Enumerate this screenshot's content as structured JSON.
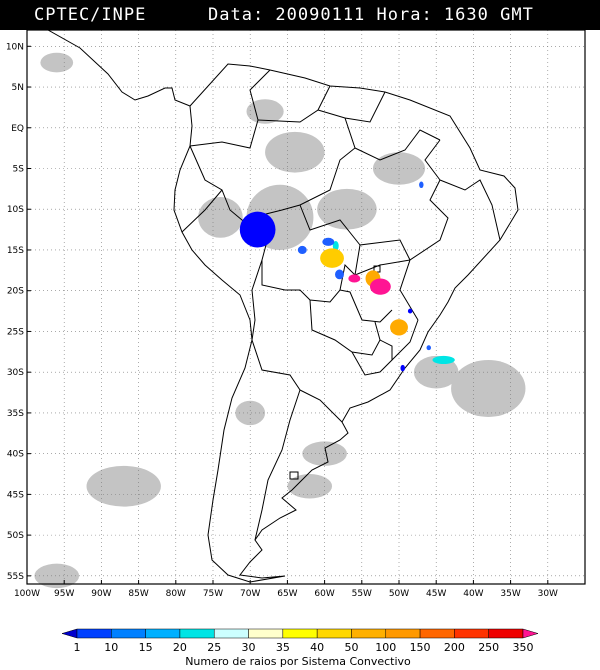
{
  "header": {
    "org": "CPTEC/INPE",
    "stamp": "Data: 20090111 Hora: 1630 GMT"
  },
  "map": {
    "projection": "lat-lon",
    "lon_range": [
      -100,
      -25
    ],
    "lat_range": [
      -56,
      12
    ],
    "gridlines": true,
    "lat_labels": [
      "10N",
      "5N",
      "EQ",
      "5S",
      "10S",
      "15S",
      "20S",
      "25S",
      "30S",
      "35S",
      "40S",
      "45S",
      "50S",
      "55S"
    ],
    "lat_values": [
      10,
      5,
      0,
      -5,
      -10,
      -15,
      -20,
      -25,
      -30,
      -35,
      -40,
      -45,
      -50,
      -55
    ],
    "lon_labels": [
      "100W",
      "95W",
      "90W",
      "85W",
      "80W",
      "75W",
      "70W",
      "65W",
      "60W",
      "55W",
      "50W",
      "45W",
      "40W",
      "35W",
      "30W"
    ],
    "lon_values": [
      -100,
      -95,
      -90,
      -85,
      -80,
      -75,
      -70,
      -65,
      -60,
      -55,
      -50,
      -45,
      -40,
      -35,
      -30
    ],
    "cloud_color": "#c4c4c4",
    "clouds": [
      {
        "lon": -96,
        "lat": 8,
        "rx": 2.2,
        "ry": 1.2
      },
      {
        "lon": -68,
        "lat": 2,
        "rx": 2.5,
        "ry": 1.5
      },
      {
        "lon": -64,
        "lat": -3,
        "rx": 4,
        "ry": 2.5
      },
      {
        "lon": -66,
        "lat": -11,
        "rx": 4.5,
        "ry": 4
      },
      {
        "lon": -74,
        "lat": -11,
        "rx": 3,
        "ry": 2.5
      },
      {
        "lon": -57,
        "lat": -10,
        "rx": 4,
        "ry": 2.5
      },
      {
        "lon": -50,
        "lat": -5,
        "rx": 3.5,
        "ry": 2
      },
      {
        "lon": -38,
        "lat": -32,
        "rx": 5,
        "ry": 3.5
      },
      {
        "lon": -45,
        "lat": -30,
        "rx": 3,
        "ry": 2
      },
      {
        "lon": -70,
        "lat": -35,
        "rx": 2,
        "ry": 1.5
      },
      {
        "lon": -60,
        "lat": -40,
        "rx": 3,
        "ry": 1.5
      },
      {
        "lon": -87,
        "lat": -44,
        "rx": 5,
        "ry": 2.5
      },
      {
        "lon": -62,
        "lat": -44,
        "rx": 3,
        "ry": 1.5
      },
      {
        "lon": -96,
        "lat": -55,
        "rx": 3,
        "ry": 1.5
      }
    ],
    "storms": [
      {
        "lon": -69,
        "lat": -12.5,
        "rx": 2.4,
        "ry": 2.2,
        "color": "#0000ff"
      },
      {
        "lon": -58.5,
        "lat": -14.5,
        "rx": 0.4,
        "ry": 0.6,
        "color": "#00e5e5"
      },
      {
        "lon": -59.5,
        "lat": -14,
        "rx": 0.8,
        "ry": 0.5,
        "color": "#1f5fff"
      },
      {
        "lon": -63,
        "lat": -15,
        "rx": 0.6,
        "ry": 0.5,
        "color": "#1f5fff"
      },
      {
        "lon": -59,
        "lat": -16,
        "rx": 1.6,
        "ry": 1.2,
        "color": "#ffcc00"
      },
      {
        "lon": -58,
        "lat": -18,
        "rx": 0.6,
        "ry": 0.6,
        "color": "#1f5fff"
      },
      {
        "lon": -56,
        "lat": -18.5,
        "rx": 0.8,
        "ry": 0.5,
        "color": "#ff1493"
      },
      {
        "lon": -53.5,
        "lat": -18.5,
        "rx": 1.0,
        "ry": 1.0,
        "color": "#ffaa00"
      },
      {
        "lon": -52.5,
        "lat": -19.5,
        "rx": 1.4,
        "ry": 1.0,
        "color": "#ff1493"
      },
      {
        "lon": -50,
        "lat": -24.5,
        "rx": 1.2,
        "ry": 1.0,
        "color": "#ffaa00"
      },
      {
        "lon": -48.5,
        "lat": -22.5,
        "rx": 0.3,
        "ry": 0.3,
        "color": "#0000ff"
      },
      {
        "lon": -44,
        "lat": -28.5,
        "rx": 1.5,
        "ry": 0.5,
        "color": "#00e5e5"
      },
      {
        "lon": -46,
        "lat": -27,
        "rx": 0.3,
        "ry": 0.3,
        "color": "#1f5fff"
      },
      {
        "lon": -49.5,
        "lat": -29.5,
        "rx": 0.3,
        "ry": 0.4,
        "color": "#0000ff"
      },
      {
        "lon": -47,
        "lat": -7,
        "rx": 0.3,
        "ry": 0.4,
        "color": "#1f5fff"
      }
    ]
  },
  "legend": {
    "title": "Numero de raios por Sistema Convectivo",
    "labels": [
      "1",
      "10",
      "15",
      "20",
      "25",
      "30",
      "35",
      "40",
      "50",
      "100",
      "150",
      "200",
      "250",
      "350"
    ],
    "colors": [
      "#0000cd",
      "#0040ff",
      "#0080ff",
      "#00b0ff",
      "#00e5e5",
      "#ccffff",
      "#ffffcc",
      "#ffff00",
      "#ffd700",
      "#ffb000",
      "#ff9900",
      "#ff6600",
      "#ff3300",
      "#ee0000",
      "#ff1493"
    ]
  }
}
